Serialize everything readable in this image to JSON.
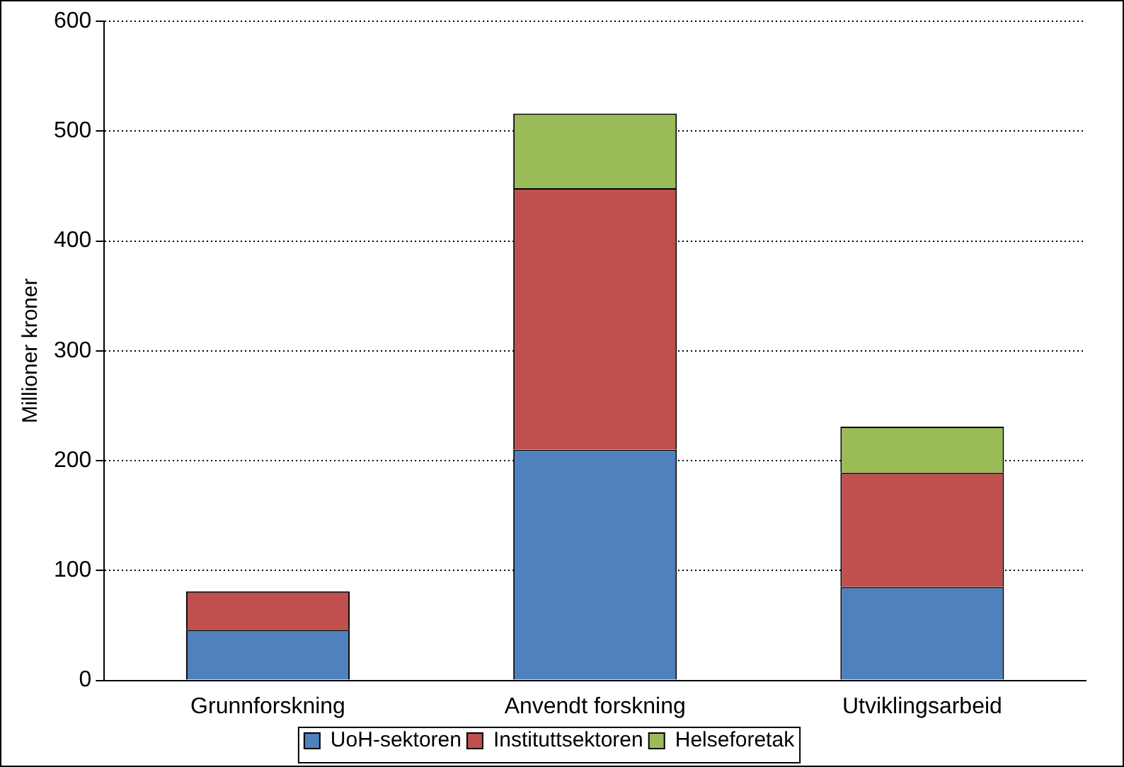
{
  "chart_data": {
    "type": "bar",
    "ylabel": "Millioner kroner",
    "categories": [
      "Grunnforskning",
      "Anvendt forskning",
      "Utviklingsarbeid"
    ],
    "stacked": true,
    "ylim": [
      0,
      600
    ],
    "yticks": [
      0,
      100,
      200,
      300,
      400,
      500,
      600
    ],
    "grid": "y",
    "legend": "bottom",
    "series": [
      {
        "name": "UoH-sektoren",
        "color": "#4f81bd",
        "values": [
          46,
          210,
          85
        ]
      },
      {
        "name": "Instituttsektoren",
        "color": "#c0504d",
        "values": [
          35,
          238,
          104
        ]
      },
      {
        "name": "Helseforetak",
        "color": "#9bbb59",
        "values": [
          null,
          68,
          42
        ]
      }
    ]
  }
}
